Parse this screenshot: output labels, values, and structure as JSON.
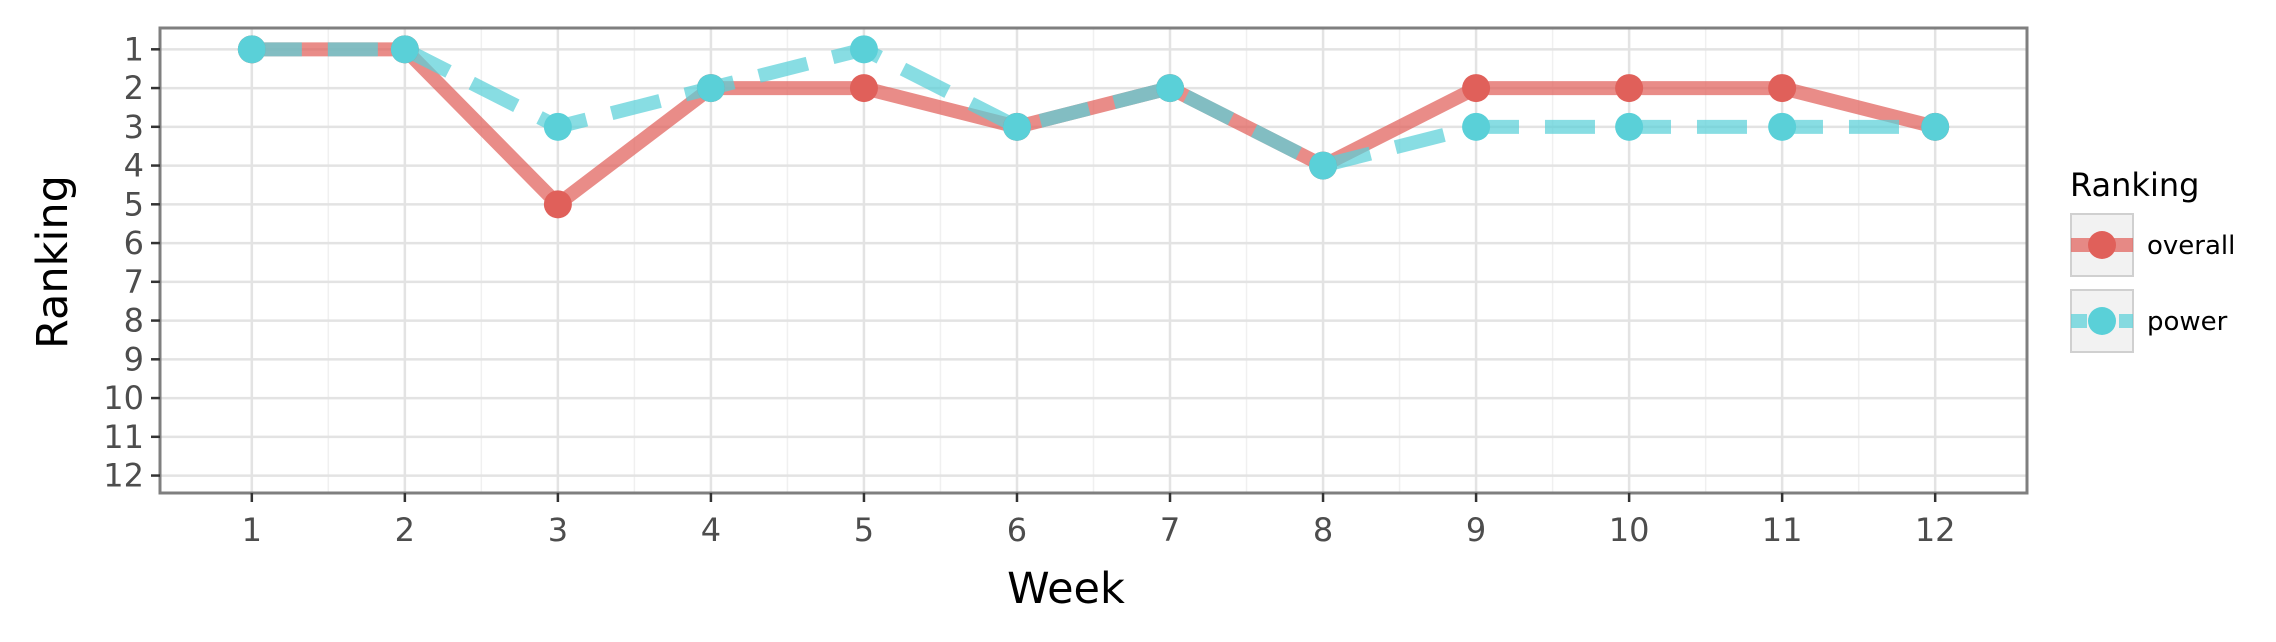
{
  "chart_data": {
    "type": "line",
    "title": "",
    "xlabel": "Week",
    "ylabel": "Ranking",
    "x": [
      1,
      2,
      3,
      4,
      5,
      6,
      7,
      8,
      9,
      10,
      11,
      12
    ],
    "x_tick_labels": [
      "1",
      "2",
      "3",
      "4",
      "5",
      "6",
      "7",
      "8",
      "9",
      "10",
      "11",
      "12"
    ],
    "y_tick_labels": [
      "1",
      "2",
      "3",
      "4",
      "5",
      "6",
      "7",
      "8",
      "9",
      "10",
      "11",
      "12"
    ],
    "xlim": [
      0.4,
      12.6
    ],
    "ylim": [
      12.45,
      0.45
    ],
    "y_reversed": true,
    "grid": true,
    "legend_title": "Ranking",
    "legend_position": "right",
    "series": [
      {
        "name": "overall",
        "color": "#e0605a",
        "line_style": "solid",
        "marker": "circle",
        "values": [
          1,
          1,
          5,
          2,
          2,
          3,
          2,
          4,
          2,
          2,
          2,
          3
        ]
      },
      {
        "name": "power",
        "color": "#5ad0d8",
        "line_style": "dashed",
        "marker": "circle",
        "values": [
          1,
          1,
          3,
          2,
          1,
          3,
          2,
          4,
          3,
          3,
          3,
          3
        ]
      }
    ]
  }
}
